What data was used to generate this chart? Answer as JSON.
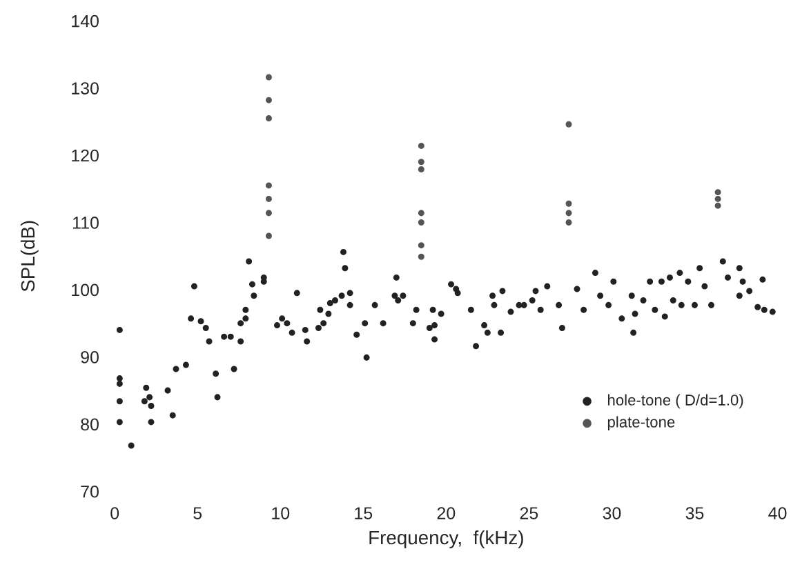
{
  "chart_data": {
    "type": "scatter",
    "xlabel": "Frequency,  f(kHz)",
    "ylabel": "SPL(dB)",
    "xlim": [
      0,
      40
    ],
    "ylim": [
      70,
      140
    ],
    "xticks": [
      0,
      5,
      10,
      15,
      20,
      25,
      30,
      35,
      40
    ],
    "yticks": [
      70,
      80,
      90,
      100,
      110,
      120,
      130,
      140
    ],
    "grid": false,
    "legend": "bottom right",
    "marker": "circle",
    "series": [
      {
        "name": "hole-tone ( D/d=1.0)",
        "color": "#222222",
        "x": [
          0.3,
          0.3,
          0.3,
          0.3,
          0.3,
          1.0,
          1.9,
          2.1,
          2.2,
          2.2,
          1.8,
          3.2,
          3.5,
          3.7,
          4.3,
          4.8,
          4.6,
          5.2,
          5.5,
          5.7,
          6.1,
          6.2,
          6.6,
          7.0,
          7.2,
          7.6,
          7.6,
          7.9,
          7.9,
          8.1,
          8.3,
          8.4,
          9.0,
          9.0,
          9.8,
          10.1,
          10.4,
          10.7,
          11.0,
          11.5,
          11.6,
          12.3,
          12.4,
          12.6,
          12.9,
          13.0,
          13.3,
          13.7,
          13.8,
          13.9,
          14.2,
          14.2,
          14.6,
          15.1,
          15.2,
          15.7,
          16.2,
          17.0,
          17.1,
          17.4,
          16.9,
          18.0,
          18.2,
          19.2,
          19.3,
          19.0,
          19.3,
          20.3,
          20.6,
          20.7,
          19.7,
          21.5,
          21.8,
          22.3,
          22.5,
          22.8,
          22.9,
          23.4,
          23.3,
          23.9,
          24.4,
          24.7,
          25.2,
          25.4,
          25.7,
          26.1,
          26.8,
          27.0,
          27.9,
          28.3,
          29.0,
          29.3,
          29.8,
          30.1,
          30.6,
          31.2,
          31.3,
          31.4,
          31.9,
          32.3,
          32.6,
          33.0,
          33.2,
          33.5,
          33.7,
          34.1,
          34.2,
          34.6,
          35.0,
          35.3,
          35.6,
          36.0,
          36.7,
          37.0,
          37.7,
          37.7,
          37.9,
          38.3,
          38.8,
          39.1,
          39.2,
          39.7
        ],
        "values": [
          94,
          86.8,
          86,
          83.4,
          80.3,
          76.8,
          85.4,
          84,
          82.7,
          80.3,
          83.4,
          85,
          81.3,
          88.2,
          88.8,
          100.5,
          95.7,
          95.3,
          94.3,
          92.3,
          87.5,
          84,
          93,
          93,
          88.2,
          95,
          92.3,
          95.7,
          97,
          104.2,
          100.8,
          99.1,
          101.8,
          101.2,
          94.7,
          95.7,
          95,
          93.6,
          99.5,
          94,
          92.3,
          94.3,
          97,
          95,
          96.4,
          98,
          98.4,
          99.1,
          105.6,
          103.2,
          99.5,
          97.7,
          93.3,
          95,
          89.9,
          97.7,
          95,
          101.8,
          98.4,
          99.1,
          99.1,
          95,
          97,
          97,
          94.7,
          94.3,
          92.6,
          100.8,
          100.1,
          99.5,
          96.4,
          97,
          91.6,
          94.7,
          93.6,
          99.1,
          97.7,
          99.8,
          93.6,
          96.7,
          97.7,
          97.7,
          98.4,
          99.8,
          97,
          100.5,
          97.7,
          94.3,
          100.1,
          97,
          102.5,
          99.1,
          97.7,
          101.2,
          95.7,
          99.1,
          93.6,
          96.4,
          98.4,
          101.2,
          97,
          101.2,
          96,
          101.8,
          98.4,
          102.5,
          97.7,
          101.2,
          97.7,
          103.2,
          100.5,
          97.7,
          104.2,
          101.8,
          103.2,
          99.1,
          101.2,
          99.8,
          97.4,
          101.5,
          97,
          96.7
        ]
      },
      {
        "name": "plate-tone",
        "color": "#555555",
        "x": [
          9.3,
          9.3,
          9.3,
          9.3,
          9.3,
          9.3,
          9.3,
          18.5,
          18.5,
          18.5,
          18.5,
          18.5,
          18.5,
          18.5,
          27.4,
          27.4,
          27.4,
          27.4,
          36.4,
          36.4,
          36.4
        ],
        "values": [
          131.6,
          128.2,
          125.5,
          115.5,
          113.5,
          111.4,
          108,
          121.4,
          119,
          117.9,
          111.4,
          110,
          106.6,
          104.9,
          124.6,
          112.8,
          111.4,
          110,
          114.5,
          113.5,
          112.5
        ]
      }
    ]
  }
}
